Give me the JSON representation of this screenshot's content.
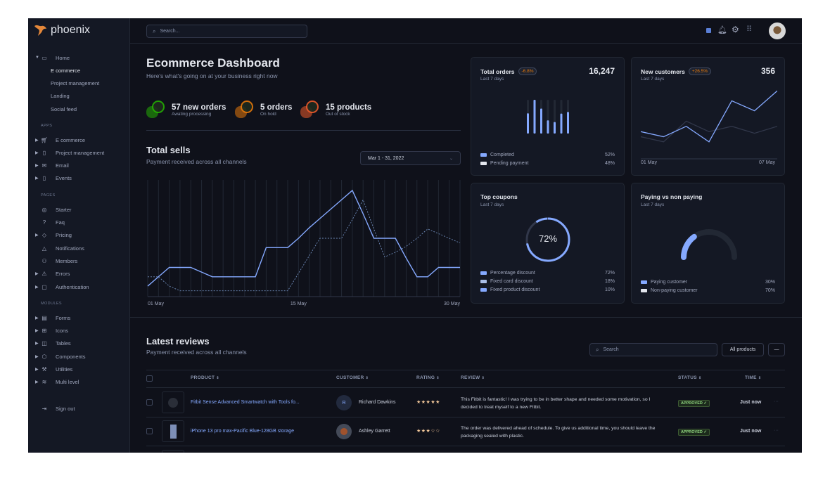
{
  "brand": {
    "name": "phoenix",
    "accent": "#85a9ff",
    "logo_color": "#e5883a"
  },
  "topbar": {
    "search_placeholder": "Search..."
  },
  "sidebar": {
    "home": {
      "label": "Home",
      "children": [
        "E commerce",
        "Project management",
        "Landing",
        "Social feed"
      ],
      "active": "E commerce"
    },
    "sections": [
      {
        "heading": "APPS",
        "items": [
          {
            "label": "E commerce",
            "icon": "cart-icon"
          },
          {
            "label": "Project management",
            "icon": "clipboard-icon"
          },
          {
            "label": "Email",
            "icon": "mail-icon"
          },
          {
            "label": "Events",
            "icon": "clipboard-icon"
          }
        ]
      },
      {
        "heading": "PAGES",
        "items": [
          {
            "label": "Starter",
            "icon": "compass-icon"
          },
          {
            "label": "Faq",
            "icon": "help-icon"
          },
          {
            "label": "Pricing",
            "icon": "tag-icon"
          },
          {
            "label": "Notifications",
            "icon": "bell-icon"
          },
          {
            "label": "Members",
            "icon": "users-icon"
          },
          {
            "label": "Errors",
            "icon": "alert-icon"
          },
          {
            "label": "Authentication",
            "icon": "lock-icon"
          }
        ]
      },
      {
        "heading": "MODULES",
        "items": [
          {
            "label": "Forms",
            "icon": "file-icon"
          },
          {
            "label": "Icons",
            "icon": "grid-icon"
          },
          {
            "label": "Tables",
            "icon": "columns-icon"
          },
          {
            "label": "Components",
            "icon": "package-icon"
          },
          {
            "label": "Utilities",
            "icon": "tool-icon"
          },
          {
            "label": "Multi level",
            "icon": "layers-icon"
          }
        ]
      }
    ],
    "sign_out": "Sign out"
  },
  "dashboard": {
    "title": "Ecommerce Dashboard",
    "subtitle": "Here's what's going on at your business right now",
    "stats": [
      {
        "value": "57 new orders",
        "desc": "Awating processing",
        "color": "#25b003"
      },
      {
        "value": "5 orders",
        "desc": "On hold",
        "color": "#e5780b"
      },
      {
        "value": "15 products",
        "desc": "Out of stock",
        "color": "#ec5b2b"
      }
    ]
  },
  "total_sells": {
    "title": "Total sells",
    "subtitle": "Payment received across all channels",
    "date_range": "Mar 1 - 31, 2022"
  },
  "chart_data": [
    {
      "type": "line",
      "x_ticks": [
        "01 May",
        "15 May",
        "30 May"
      ],
      "x": [
        1,
        2,
        3,
        4,
        5,
        6,
        7,
        8,
        9,
        10,
        11,
        12,
        13,
        14,
        15,
        16,
        17,
        18,
        19,
        20,
        21,
        22,
        23,
        24,
        25,
        26,
        27,
        28,
        29,
        30
      ],
      "series": [
        {
          "style": "solid",
          "color": "#85a9ff",
          "values": [
            9,
            17,
            25,
            25,
            25,
            21,
            17,
            17,
            17,
            17,
            17,
            42,
            42,
            42,
            50,
            59,
            67,
            75,
            83,
            91,
            71,
            50,
            50,
            50,
            33,
            17,
            17,
            25,
            25,
            25
          ]
        },
        {
          "style": "dashed",
          "color": "#6e8ab8",
          "values": [
            17,
            17,
            9,
            5,
            5,
            5,
            5,
            5,
            5,
            5,
            5,
            5,
            5,
            5,
            20,
            35,
            50,
            50,
            50,
            66,
            83,
            58,
            34,
            38,
            43,
            50,
            58,
            54,
            50,
            46
          ]
        }
      ],
      "grid": "vertical"
    },
    {
      "type": "bar",
      "card": "total_orders",
      "values_percent": [
        60,
        100,
        74,
        39,
        34,
        59,
        64
      ]
    },
    {
      "type": "line",
      "card": "new_customers",
      "x_ticks": [
        "01 May",
        "07 May"
      ],
      "series": [
        {
          "color": "#85a9ff",
          "values": [
            90,
            68,
            113,
            46,
            223,
            180,
            266
          ]
        },
        {
          "color": "#31374a",
          "values": [
            68,
            46,
            135,
            90,
            113,
            83,
            113
          ]
        }
      ]
    },
    {
      "type": "pie",
      "card": "top_coupons",
      "center_label": "72%",
      "values": [
        72,
        18,
        10
      ]
    },
    {
      "type": "pie",
      "card": "paying",
      "variant": "gauge",
      "values": [
        30,
        70
      ]
    }
  ],
  "cards": {
    "total_orders": {
      "title": "Total orders",
      "badge": "-6.8%",
      "subtitle": "Last 7 days",
      "value": "16,247",
      "legend": [
        {
          "label": "Completed",
          "value": "52%",
          "color": "#85a9ff"
        },
        {
          "label": "Pending payment",
          "value": "48%",
          "color": "#e3e6ed"
        }
      ]
    },
    "new_customers": {
      "title": "New customers",
      "badge": "+26.5%",
      "subtitle": "Last 7 days",
      "value": "356",
      "x_start": "01 May",
      "x_end": "07 May"
    },
    "top_coupons": {
      "title": "Top coupons",
      "subtitle": "Last 7 days",
      "center": "72%",
      "legend": [
        {
          "label": "Percentage discount",
          "value": "72%",
          "color": "#85a9ff"
        },
        {
          "label": "Fixed card discount",
          "value": "18%",
          "color": "#a9bde6"
        },
        {
          "label": "Fixed product discount",
          "value": "10%",
          "color": "#85a9ff"
        }
      ]
    },
    "paying": {
      "title": "Paying vs non paying",
      "subtitle": "Last 7 days",
      "legend": [
        {
          "label": "Paying customer",
          "value": "30%",
          "color": "#85a9ff"
        },
        {
          "label": "Non-paying customer",
          "value": "70%",
          "color": "#e3e6ed"
        }
      ]
    }
  },
  "reviews": {
    "title": "Latest reviews",
    "subtitle": "Payment received across all channels",
    "search_placeholder": "Search",
    "filter": "All products",
    "more": "—",
    "columns": [
      "PRODUCT",
      "CUSTOMER",
      "RATING",
      "REVIEW",
      "STATUS",
      "TIME"
    ],
    "rows": [
      {
        "product": "Fitbit Sense Advanced Smartwatch with Tools fo...",
        "customer": "Richard Dawkins",
        "initial": "R",
        "rating": 5,
        "stars": "★★★★★",
        "review": "This Fitbit is fantastic! I was trying to be in better shape and needed some motivation, so I decided to treat myself to a new Fitbit.",
        "status": "APPROVED ✓",
        "time": "Just now"
      },
      {
        "product": "iPhone 13 pro max-Pacific Blue-128GB storage",
        "customer": "Ashley Garrett",
        "initial": "",
        "rating": 3,
        "stars": "★★★☆☆",
        "review": "The order was delivered ahead of schedule. To give us additional time, you should leave the packaging sealed with plastic.",
        "status": "APPROVED ✓",
        "time": "Just now"
      }
    ]
  }
}
